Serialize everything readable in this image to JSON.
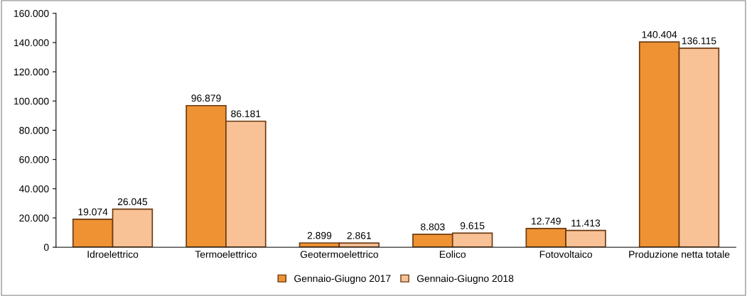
{
  "chart_data": {
    "type": "bar",
    "categories": [
      "Idroelettrico",
      "Termoelettrico",
      "Geotermoelettrico",
      "Eolico",
      "Fotovoltaico",
      "Produzione netta totale"
    ],
    "series": [
      {
        "name": "Gennaio-Giugno 2017",
        "color": "#ee9233",
        "values": [
          19074,
          96879,
          2899,
          8803,
          12749,
          140404
        ],
        "value_labels": [
          "19.074",
          "96.879",
          "2.899",
          "8.803",
          "12.749",
          "140.404"
        ]
      },
      {
        "name": "Gennaio-Giugno 2018",
        "color": "#f8c196",
        "values": [
          26045,
          86181,
          2861,
          9615,
          11413,
          136115
        ],
        "value_labels": [
          "26.045",
          "86.181",
          "2.861",
          "9.615",
          "11.413",
          "136.115"
        ]
      }
    ],
    "ylim": [
      0,
      160000
    ],
    "yticks": [
      0,
      {
        "value": 20000,
        "label": "20.000"
      },
      {
        "value": 40000,
        "label": "40.000"
      },
      {
        "value": 60000,
        "label": "60.000"
      },
      {
        "value": 80000,
        "label": "80.000"
      },
      {
        "value": 100000,
        "label": "100.000"
      },
      {
        "value": 120000,
        "label": "120.000"
      },
      {
        "value": 140000,
        "label": "140.000"
      },
      {
        "value": 160000,
        "label": "160.000"
      }
    ],
    "grid": false,
    "legend": "bottom"
  }
}
